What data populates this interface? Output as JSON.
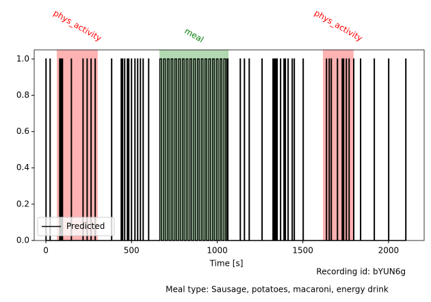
{
  "chart_data": {
    "type": "step",
    "xlabel": "Time [s]",
    "xlim": [
      -68,
      2208
    ],
    "ylim": [
      0,
      1.05
    ],
    "xticks": [
      0,
      500,
      1000,
      1500,
      2000
    ],
    "yticks": [
      {
        "value": 0,
        "label": "0.0"
      },
      0.2,
      0.4,
      0.6,
      0.8,
      {
        "value": 1,
        "label": "1.0"
      }
    ],
    "legend": "lower left",
    "spans": [
      {
        "label": "phys_activity",
        "start": 64,
        "end": 303,
        "color": "#ff0000"
      },
      {
        "label": "meal",
        "start": 663,
        "end": 1066,
        "color": "#008000"
      },
      {
        "label": "phys_activity",
        "start": 1617,
        "end": 1796,
        "color": "#ff0000"
      }
    ],
    "series": [
      {
        "name": "Predicted",
        "color": "#000000",
        "x": [
          0,
          0,
          2,
          24,
          26,
          80,
          82,
          88,
          90,
          96,
          98,
          148,
          150,
          216,
          218,
          240,
          242,
          263,
          265,
          287,
          289,
          383,
          385,
          439,
          441,
          447,
          449,
          459,
          461,
          475,
          477,
          483,
          485,
          499,
          501,
          519,
          521,
          535,
          537,
          551,
          553,
          567,
          569,
          599,
          601,
          665,
          675,
          687,
          697,
          709,
          719,
          731,
          741,
          753,
          763,
          775,
          785,
          797,
          807,
          819,
          829,
          841,
          851,
          863,
          873,
          885,
          895,
          907,
          917,
          929,
          939,
          951,
          961,
          973,
          983,
          995,
          1005,
          1017,
          1027,
          1039,
          1049,
          1057,
          1063,
          1134,
          1136,
          1158,
          1160,
          1186,
          1188,
          1261,
          1263,
          1325,
          1327,
          1333,
          1335,
          1341,
          1343,
          1349,
          1351,
          1369,
          1371,
          1389,
          1391,
          1397,
          1399,
          1413,
          1415,
          1437,
          1439,
          1449,
          1451,
          1501,
          1503,
          1637,
          1639,
          1653,
          1655,
          1665,
          1667,
          1701,
          1703,
          1729,
          1731,
          1737,
          1739,
          1753,
          1755,
          1769,
          1771,
          1796,
          1798,
          1836,
          1838,
          1916,
          1918,
          2000,
          2002,
          2100,
          2102
        ],
        "values": [
          0,
          1,
          0,
          1,
          0,
          1,
          0,
          1,
          0,
          1,
          0,
          1,
          0,
          1,
          0,
          1,
          0,
          1,
          0,
          1,
          0,
          1,
          0,
          1,
          0,
          1,
          0,
          1,
          0,
          1,
          0,
          1,
          0,
          1,
          0,
          1,
          0,
          1,
          0,
          1,
          0,
          1,
          0,
          1,
          0,
          1,
          0,
          1,
          0,
          1,
          0,
          1,
          0,
          1,
          0,
          1,
          0,
          1,
          0,
          1,
          0,
          1,
          0,
          1,
          0,
          1,
          0,
          1,
          0,
          1,
          0,
          1,
          0,
          1,
          0,
          1,
          0,
          1,
          0,
          1,
          0,
          1,
          0,
          1,
          0,
          1,
          0,
          1,
          0,
          1,
          0,
          1,
          0,
          1,
          0,
          1,
          0,
          1,
          0,
          1,
          0,
          1,
          0,
          1,
          0,
          1,
          0,
          1,
          0,
          1,
          0,
          1,
          0,
          1,
          0,
          1,
          0,
          1,
          0,
          1,
          0,
          1,
          0,
          1,
          0,
          1,
          0,
          1,
          0,
          1,
          0,
          1,
          0,
          1,
          0,
          1,
          0,
          1,
          0
        ]
      }
    ],
    "notes": [
      "Recording id: bYUN6g",
      "Meal type: Sausage, potatoes, macaroni, energy drink"
    ]
  }
}
